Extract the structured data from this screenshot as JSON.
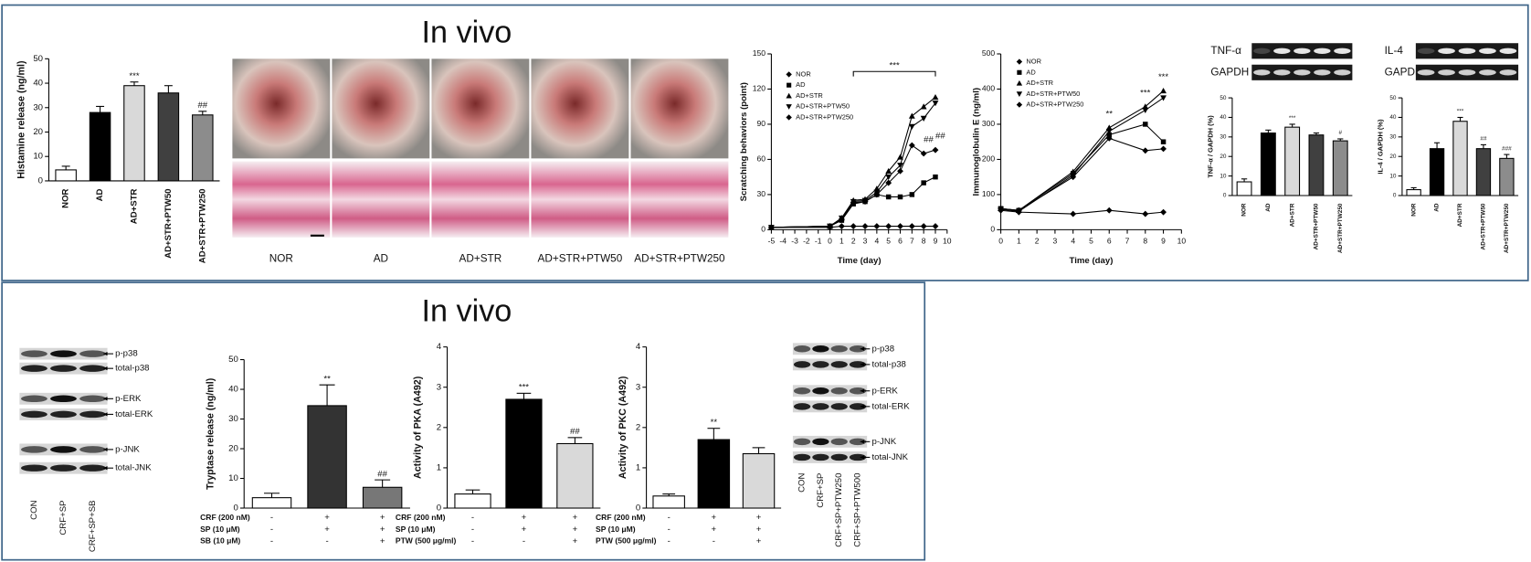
{
  "headings": [
    "In vivo",
    "In vivo"
  ],
  "photos": {
    "labels": [
      "NOR",
      "AD",
      "AD+STR",
      "AD+STR+PTW50",
      "AD+STR+PTW250"
    ]
  },
  "blots": [
    {
      "proteins": [
        "p-p38",
        "total-p38",
        "p-ERK",
        "total-ERK",
        "p-JNK",
        "total-JNK"
      ],
      "lanes": [
        "CON",
        "CRF+SP",
        "CRF+SP+SB"
      ]
    },
    {
      "proteins": [
        "p-p38",
        "total-p38",
        "p-ERK",
        "total-ERK",
        "p-JNK",
        "total-JNK"
      ],
      "lanes": [
        "CON",
        "CRF+SP",
        "CRF+SP+PTW250",
        "CRF+SP+PTW500"
      ]
    }
  ],
  "chart_data": [
    {
      "type": "bar",
      "y_label": "Histamine release (ng/ml)",
      "categories": [
        "NOR",
        "AD",
        "AD+STR",
        "AD+STR+PTW50",
        "AD+STR+PTW250"
      ],
      "values": [
        4.5,
        28,
        39,
        36,
        27
      ],
      "errors": [
        1.5,
        2.5,
        1.5,
        3,
        1.5
      ],
      "colors": [
        "#ffffff",
        "#000000",
        "#d9d9d9",
        "#404040",
        "#8c8c8c"
      ],
      "ylim": [
        0,
        50
      ],
      "yticks": [
        0,
        10,
        20,
        30,
        40,
        50
      ],
      "annotations": [
        {
          "index": 2,
          "text": "***"
        },
        {
          "index": 4,
          "text": "##"
        }
      ]
    },
    {
      "type": "line",
      "x_label": "Time (day)",
      "y_label": "Scratching behaviors (point)",
      "x": [
        -5,
        0,
        1,
        2,
        3,
        4,
        5,
        6,
        7,
        8,
        9
      ],
      "xlim": [
        -5,
        10
      ],
      "xticks": [
        -5,
        -4,
        -3,
        -2,
        -1,
        0,
        1,
        2,
        3,
        4,
        5,
        6,
        7,
        8,
        9,
        10
      ],
      "ylim": [
        0,
        150
      ],
      "yticks": [
        0,
        30,
        60,
        90,
        120,
        150
      ],
      "series": [
        {
          "name": "NOR",
          "color": "#000000",
          "marker": "diamond",
          "values": [
            2,
            2,
            3,
            3,
            3,
            3,
            3,
            3,
            3,
            3,
            3
          ]
        },
        {
          "name": "AD",
          "color": "#000000",
          "marker": "square",
          "values": [
            2,
            3,
            8,
            22,
            24,
            30,
            28,
            28,
            30,
            40,
            45
          ]
        },
        {
          "name": "AD+STR",
          "color": "#000000",
          "marker": "triangle",
          "values": [
            2,
            3,
            10,
            25,
            26,
            35,
            50,
            62,
            97,
            105,
            113
          ]
        },
        {
          "name": "AD+STR+PTW50",
          "color": "#000000",
          "marker": "triangle-down",
          "values": [
            2,
            3,
            10,
            24,
            25,
            32,
            45,
            55,
            88,
            95,
            108
          ]
        },
        {
          "name": "AD+STR+PTW250",
          "color": "#000000",
          "marker": "diamond",
          "values": [
            2,
            3,
            9,
            23,
            24,
            30,
            40,
            50,
            72,
            65,
            68
          ]
        }
      ],
      "annotations": [
        {
          "x": [
            2,
            9
          ],
          "text": "***"
        },
        {
          "x": 8,
          "series": 4,
          "text": "##"
        },
        {
          "x": 9,
          "series": 4,
          "text": "##"
        }
      ]
    },
    {
      "type": "line",
      "x_label": "Time (day)",
      "y_label": "Immunoglobulin E (ng/ml)",
      "x": [
        0,
        1,
        4,
        6,
        8,
        9
      ],
      "xlim": [
        0,
        10
      ],
      "xticks": [
        0,
        1,
        2,
        3,
        4,
        5,
        6,
        7,
        8,
        9,
        10
      ],
      "ylim": [
        0,
        500
      ],
      "yticks": [
        0,
        100,
        200,
        300,
        400,
        500
      ],
      "series": [
        {
          "name": "NOR",
          "color": "#000000",
          "marker": "diamond",
          "values": [
            55,
            50,
            45,
            55,
            45,
            50
          ]
        },
        {
          "name": "AD",
          "color": "#000000",
          "marker": "square",
          "values": [
            60,
            55,
            160,
            270,
            300,
            250
          ]
        },
        {
          "name": "AD+STR",
          "color": "#000000",
          "marker": "triangle",
          "values": [
            60,
            55,
            165,
            290,
            350,
            395
          ]
        },
        {
          "name": "AD+STR+PTW50",
          "color": "#000000",
          "marker": "triangle-down",
          "values": [
            58,
            52,
            155,
            280,
            340,
            375
          ]
        },
        {
          "name": "AD+STR+PTW250",
          "color": "#000000",
          "marker": "diamond",
          "values": [
            60,
            55,
            150,
            260,
            225,
            230
          ]
        }
      ],
      "annotations": [
        {
          "x": 6,
          "text": "**"
        },
        {
          "x": 8,
          "text": "***"
        },
        {
          "x": 9,
          "text": "***"
        }
      ]
    },
    {
      "type": "bar",
      "y_label": "TNF-α / GAPDH (%)",
      "blot": [
        "TNF-α",
        "GAPDH"
      ],
      "categories": [
        "NOR",
        "AD",
        "AD+STR",
        "AD+STR+PTW50",
        "AD+STR+PTW250"
      ],
      "values": [
        7,
        32,
        35,
        31,
        28
      ],
      "errors": [
        1.5,
        1.5,
        1.5,
        1,
        1
      ],
      "colors": [
        "#ffffff",
        "#000000",
        "#d9d9d9",
        "#404040",
        "#8c8c8c"
      ],
      "ylim": [
        0,
        50
      ],
      "yticks": [
        0,
        10,
        20,
        30,
        40,
        50
      ],
      "annotations": [
        {
          "index": 2,
          "text": "***"
        },
        {
          "index": 4,
          "text": "#"
        }
      ]
    },
    {
      "type": "bar",
      "y_label": "IL-4 / GAPDH (%)",
      "blot": [
        "IL-4",
        "GAPDH"
      ],
      "categories": [
        "NOR",
        "AD",
        "AD+STR",
        "AD+STR+PTW50",
        "AD+STR+PTW250"
      ],
      "values": [
        3,
        24,
        38,
        24,
        19
      ],
      "errors": [
        1,
        3,
        2,
        2,
        2
      ],
      "colors": [
        "#ffffff",
        "#000000",
        "#d9d9d9",
        "#404040",
        "#8c8c8c"
      ],
      "ylim": [
        0,
        50
      ],
      "yticks": [
        0,
        10,
        20,
        30,
        40,
        50
      ],
      "annotations": [
        {
          "index": 2,
          "text": "***"
        },
        {
          "index": 3,
          "text": "##"
        },
        {
          "index": 4,
          "text": "###"
        }
      ]
    },
    {
      "type": "bar",
      "y_label": "Tryptase release (ng/ml)",
      "values": [
        3.5,
        34.5,
        7
      ],
      "errors": [
        1.5,
        7,
        2.5
      ],
      "colors": [
        "#ffffff",
        "#333333",
        "#777777"
      ],
      "ylim": [
        0,
        50
      ],
      "yticks": [
        0,
        10,
        20,
        30,
        40,
        50
      ],
      "annotations": [
        {
          "index": 1,
          "text": "**"
        },
        {
          "index": 2,
          "text": "##"
        }
      ],
      "conditions": [
        {
          "label": "CRF (200 nM)",
          "marks": [
            "-",
            "+",
            "+"
          ]
        },
        {
          "label": "SP (10 μM)",
          "marks": [
            "-",
            "+",
            "+"
          ]
        },
        {
          "label": "SB (10 μM)",
          "marks": [
            "-",
            "-",
            "+"
          ]
        }
      ]
    },
    {
      "type": "bar",
      "y_label": "Activity of PKA (A492)",
      "values": [
        0.35,
        2.7,
        1.6
      ],
      "errors": [
        0.1,
        0.15,
        0.15
      ],
      "colors": [
        "#ffffff",
        "#000000",
        "#d9d9d9"
      ],
      "ylim": [
        0,
        4
      ],
      "yticks": [
        0,
        1,
        2,
        3,
        4
      ],
      "annotations": [
        {
          "index": 1,
          "text": "***"
        },
        {
          "index": 2,
          "text": "##"
        }
      ],
      "conditions": [
        {
          "label": "CRF (200 nM)",
          "marks": [
            "-",
            "+",
            "+"
          ]
        },
        {
          "label": "SP (10 μM)",
          "marks": [
            "-",
            "+",
            "+"
          ]
        },
        {
          "label": "PTW (500 μg/ml)",
          "marks": [
            "-",
            "-",
            "+"
          ]
        }
      ]
    },
    {
      "type": "bar",
      "y_label": "Activity of PKC (A492)",
      "values": [
        0.3,
        1.7,
        1.35
      ],
      "errors": [
        0.05,
        0.28,
        0.15
      ],
      "colors": [
        "#ffffff",
        "#000000",
        "#d9d9d9"
      ],
      "ylim": [
        0,
        4
      ],
      "yticks": [
        0,
        1,
        2,
        3,
        4
      ],
      "annotations": [
        {
          "index": 1,
          "text": "**"
        }
      ],
      "conditions": [
        {
          "label": "CRF (200 nM)",
          "marks": [
            "-",
            "+",
            "+"
          ]
        },
        {
          "label": "SP (10 μM)",
          "marks": [
            "-",
            "+",
            "+"
          ]
        },
        {
          "label": "PTW (500 μg/ml)",
          "marks": [
            "-",
            "-",
            "+"
          ]
        }
      ]
    }
  ]
}
